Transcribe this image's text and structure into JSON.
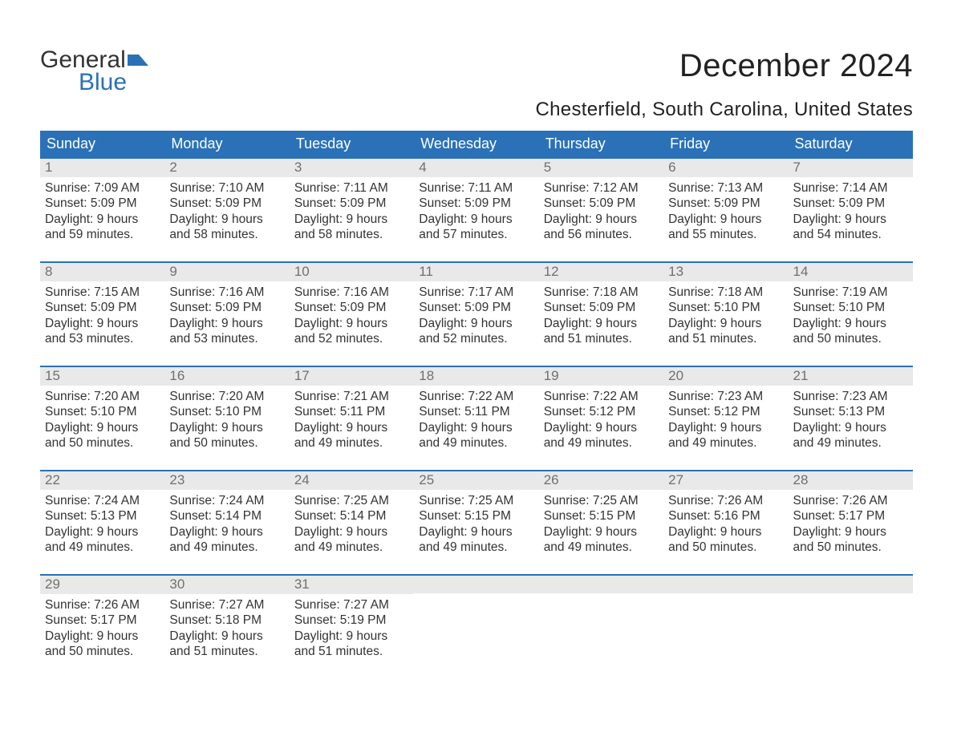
{
  "logo": {
    "line1": "General",
    "line2": "Blue",
    "flag_color": "#2a71b8"
  },
  "title": "December 2024",
  "location": "Chesterfield, South Carolina, United States",
  "colors": {
    "header_bg": "#2a71b8",
    "header_text": "#ffffff",
    "daynum_bg": "#e9e9e9",
    "daynum_text": "#707070",
    "body_text": "#333333",
    "row_border": "#2a71b8",
    "background": "#ffffff"
  },
  "fonts": {
    "title_size_pt": 30,
    "location_size_pt": 18,
    "header_cell_size_pt": 14,
    "daynum_size_pt": 13,
    "body_size_pt": 12
  },
  "weekdays": [
    "Sunday",
    "Monday",
    "Tuesday",
    "Wednesday",
    "Thursday",
    "Friday",
    "Saturday"
  ],
  "weeks": [
    [
      {
        "day": "1",
        "sunrise": "Sunrise: 7:09 AM",
        "sunset": "Sunset: 5:09 PM",
        "daylight1": "Daylight: 9 hours",
        "daylight2": "and 59 minutes."
      },
      {
        "day": "2",
        "sunrise": "Sunrise: 7:10 AM",
        "sunset": "Sunset: 5:09 PM",
        "daylight1": "Daylight: 9 hours",
        "daylight2": "and 58 minutes."
      },
      {
        "day": "3",
        "sunrise": "Sunrise: 7:11 AM",
        "sunset": "Sunset: 5:09 PM",
        "daylight1": "Daylight: 9 hours",
        "daylight2": "and 58 minutes."
      },
      {
        "day": "4",
        "sunrise": "Sunrise: 7:11 AM",
        "sunset": "Sunset: 5:09 PM",
        "daylight1": "Daylight: 9 hours",
        "daylight2": "and 57 minutes."
      },
      {
        "day": "5",
        "sunrise": "Sunrise: 7:12 AM",
        "sunset": "Sunset: 5:09 PM",
        "daylight1": "Daylight: 9 hours",
        "daylight2": "and 56 minutes."
      },
      {
        "day": "6",
        "sunrise": "Sunrise: 7:13 AM",
        "sunset": "Sunset: 5:09 PM",
        "daylight1": "Daylight: 9 hours",
        "daylight2": "and 55 minutes."
      },
      {
        "day": "7",
        "sunrise": "Sunrise: 7:14 AM",
        "sunset": "Sunset: 5:09 PM",
        "daylight1": "Daylight: 9 hours",
        "daylight2": "and 54 minutes."
      }
    ],
    [
      {
        "day": "8",
        "sunrise": "Sunrise: 7:15 AM",
        "sunset": "Sunset: 5:09 PM",
        "daylight1": "Daylight: 9 hours",
        "daylight2": "and 53 minutes."
      },
      {
        "day": "9",
        "sunrise": "Sunrise: 7:16 AM",
        "sunset": "Sunset: 5:09 PM",
        "daylight1": "Daylight: 9 hours",
        "daylight2": "and 53 minutes."
      },
      {
        "day": "10",
        "sunrise": "Sunrise: 7:16 AM",
        "sunset": "Sunset: 5:09 PM",
        "daylight1": "Daylight: 9 hours",
        "daylight2": "and 52 minutes."
      },
      {
        "day": "11",
        "sunrise": "Sunrise: 7:17 AM",
        "sunset": "Sunset: 5:09 PM",
        "daylight1": "Daylight: 9 hours",
        "daylight2": "and 52 minutes."
      },
      {
        "day": "12",
        "sunrise": "Sunrise: 7:18 AM",
        "sunset": "Sunset: 5:09 PM",
        "daylight1": "Daylight: 9 hours",
        "daylight2": "and 51 minutes."
      },
      {
        "day": "13",
        "sunrise": "Sunrise: 7:18 AM",
        "sunset": "Sunset: 5:10 PM",
        "daylight1": "Daylight: 9 hours",
        "daylight2": "and 51 minutes."
      },
      {
        "day": "14",
        "sunrise": "Sunrise: 7:19 AM",
        "sunset": "Sunset: 5:10 PM",
        "daylight1": "Daylight: 9 hours",
        "daylight2": "and 50 minutes."
      }
    ],
    [
      {
        "day": "15",
        "sunrise": "Sunrise: 7:20 AM",
        "sunset": "Sunset: 5:10 PM",
        "daylight1": "Daylight: 9 hours",
        "daylight2": "and 50 minutes."
      },
      {
        "day": "16",
        "sunrise": "Sunrise: 7:20 AM",
        "sunset": "Sunset: 5:10 PM",
        "daylight1": "Daylight: 9 hours",
        "daylight2": "and 50 minutes."
      },
      {
        "day": "17",
        "sunrise": "Sunrise: 7:21 AM",
        "sunset": "Sunset: 5:11 PM",
        "daylight1": "Daylight: 9 hours",
        "daylight2": "and 49 minutes."
      },
      {
        "day": "18",
        "sunrise": "Sunrise: 7:22 AM",
        "sunset": "Sunset: 5:11 PM",
        "daylight1": "Daylight: 9 hours",
        "daylight2": "and 49 minutes."
      },
      {
        "day": "19",
        "sunrise": "Sunrise: 7:22 AM",
        "sunset": "Sunset: 5:12 PM",
        "daylight1": "Daylight: 9 hours",
        "daylight2": "and 49 minutes."
      },
      {
        "day": "20",
        "sunrise": "Sunrise: 7:23 AM",
        "sunset": "Sunset: 5:12 PM",
        "daylight1": "Daylight: 9 hours",
        "daylight2": "and 49 minutes."
      },
      {
        "day": "21",
        "sunrise": "Sunrise: 7:23 AM",
        "sunset": "Sunset: 5:13 PM",
        "daylight1": "Daylight: 9 hours",
        "daylight2": "and 49 minutes."
      }
    ],
    [
      {
        "day": "22",
        "sunrise": "Sunrise: 7:24 AM",
        "sunset": "Sunset: 5:13 PM",
        "daylight1": "Daylight: 9 hours",
        "daylight2": "and 49 minutes."
      },
      {
        "day": "23",
        "sunrise": "Sunrise: 7:24 AM",
        "sunset": "Sunset: 5:14 PM",
        "daylight1": "Daylight: 9 hours",
        "daylight2": "and 49 minutes."
      },
      {
        "day": "24",
        "sunrise": "Sunrise: 7:25 AM",
        "sunset": "Sunset: 5:14 PM",
        "daylight1": "Daylight: 9 hours",
        "daylight2": "and 49 minutes."
      },
      {
        "day": "25",
        "sunrise": "Sunrise: 7:25 AM",
        "sunset": "Sunset: 5:15 PM",
        "daylight1": "Daylight: 9 hours",
        "daylight2": "and 49 minutes."
      },
      {
        "day": "26",
        "sunrise": "Sunrise: 7:25 AM",
        "sunset": "Sunset: 5:15 PM",
        "daylight1": "Daylight: 9 hours",
        "daylight2": "and 49 minutes."
      },
      {
        "day": "27",
        "sunrise": "Sunrise: 7:26 AM",
        "sunset": "Sunset: 5:16 PM",
        "daylight1": "Daylight: 9 hours",
        "daylight2": "and 50 minutes."
      },
      {
        "day": "28",
        "sunrise": "Sunrise: 7:26 AM",
        "sunset": "Sunset: 5:17 PM",
        "daylight1": "Daylight: 9 hours",
        "daylight2": "and 50 minutes."
      }
    ],
    [
      {
        "day": "29",
        "sunrise": "Sunrise: 7:26 AM",
        "sunset": "Sunset: 5:17 PM",
        "daylight1": "Daylight: 9 hours",
        "daylight2": "and 50 minutes."
      },
      {
        "day": "30",
        "sunrise": "Sunrise: 7:27 AM",
        "sunset": "Sunset: 5:18 PM",
        "daylight1": "Daylight: 9 hours",
        "daylight2": "and 51 minutes."
      },
      {
        "day": "31",
        "sunrise": "Sunrise: 7:27 AM",
        "sunset": "Sunset: 5:19 PM",
        "daylight1": "Daylight: 9 hours",
        "daylight2": "and 51 minutes."
      },
      null,
      null,
      null,
      null
    ]
  ]
}
